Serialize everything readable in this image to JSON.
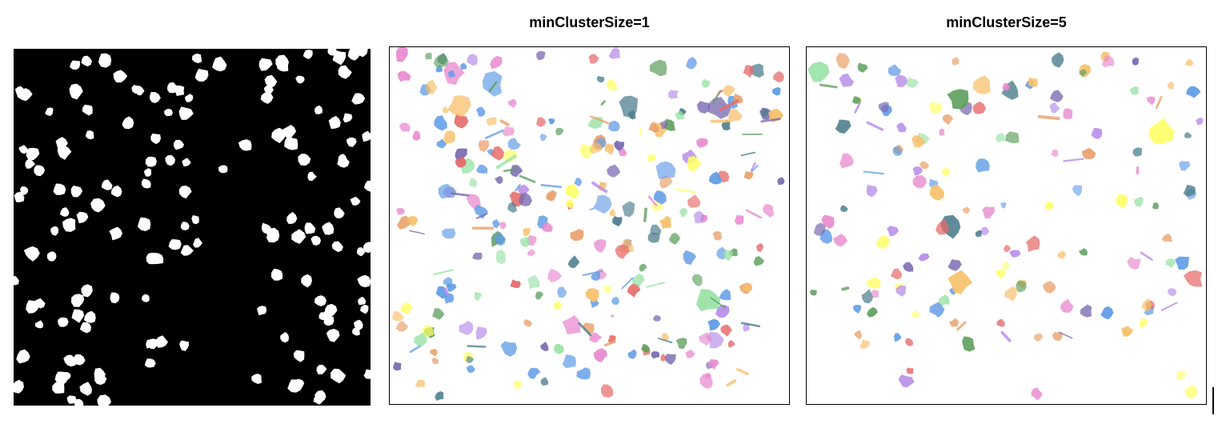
{
  "panels": {
    "mask": {
      "title": ""
    },
    "min1": {
      "title": "minClusterSize=1"
    },
    "min5": {
      "title": "minClusterSize=5"
    }
  },
  "colors": {
    "mask_background": "#000000",
    "mask_blob": "#ffffff",
    "cluster_palette": [
      "#e66a6a",
      "#f7c06a",
      "#ffff6a",
      "#9be3a8",
      "#5f9ce6",
      "#b68ae8",
      "#e98bd0",
      "#4f7f8f",
      "#5f9f5f",
      "#7a6ab0",
      "#e9a06a",
      "#6aa0e6"
    ]
  }
}
